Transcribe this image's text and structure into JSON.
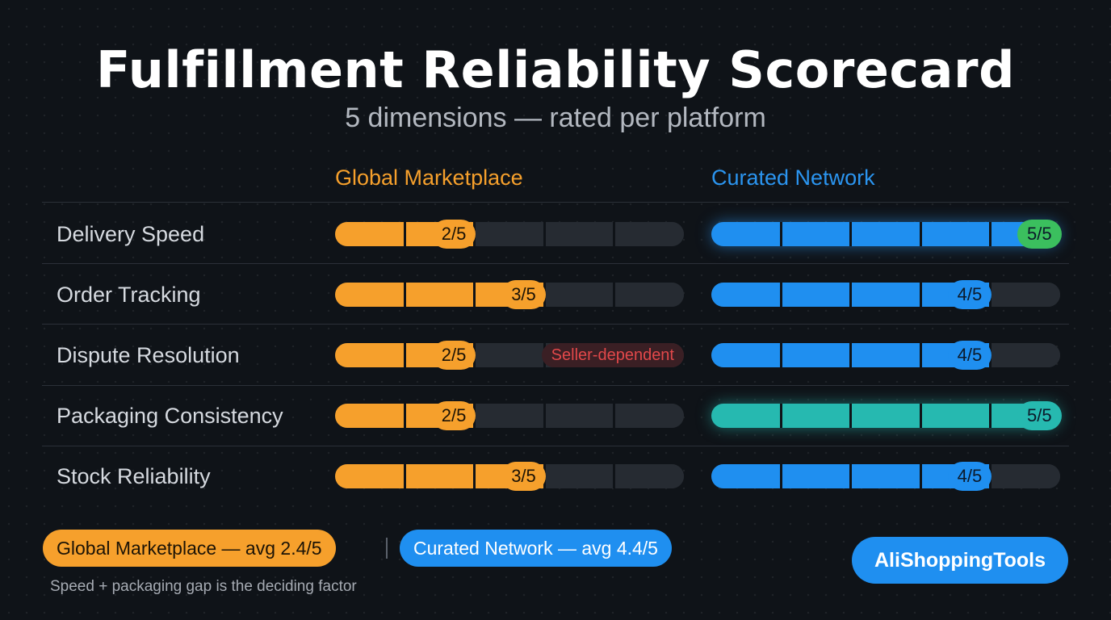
{
  "header": {
    "title": "Fulfillment Reliability Scorecard",
    "subtitle": "5 dimensions — rated per platform"
  },
  "columns": {
    "global": "Global Marketplace",
    "curated": "Curated Network"
  },
  "chart_data": {
    "type": "bar",
    "categories": [
      "Delivery Speed",
      "Order Tracking",
      "Dispute Resolution",
      "Packaging Consistency",
      "Stock Reliability"
    ],
    "max": 5,
    "series": [
      {
        "name": "Global Marketplace",
        "color": "#f6a02c",
        "values": [
          2,
          3,
          2,
          2,
          3
        ],
        "labels": [
          "2/5",
          "3/5",
          "2/5",
          "2/5",
          "3/5"
        ]
      },
      {
        "name": "Curated Network",
        "color": "#1f8ff0",
        "values": [
          5,
          4,
          4,
          5,
          4
        ],
        "labels": [
          "5/5",
          "4/5",
          "4/5",
          "5/5",
          "4/5"
        ]
      }
    ],
    "annotations": [
      {
        "series": "Global Marketplace",
        "category": "Dispute Resolution",
        "text": "Seller-dependent",
        "color": "#e2484a"
      }
    ],
    "highlight_colors": {
      "badge_green": "#3bbf5e",
      "fill_teal": "#26b9b0",
      "empty": "#262b32"
    }
  },
  "legend": {
    "global": "Global Marketplace — avg 2.4/5",
    "curated": "Curated Network — avg 4.4/5"
  },
  "footnote": "Speed + packaging gap is the deciding factor",
  "brand": "AliShoppingTools"
}
